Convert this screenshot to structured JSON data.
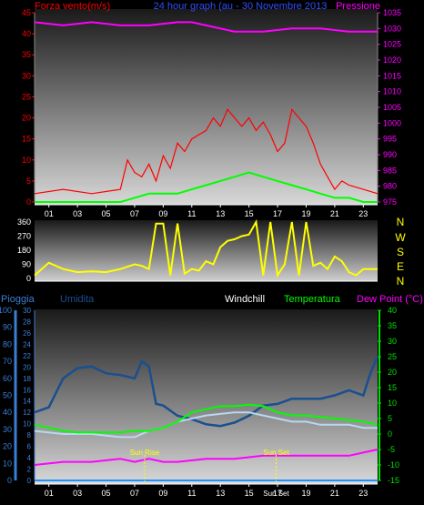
{
  "header": {
    "left_title": "Forza vento",
    "left_unit": "(m/s)",
    "center_title": "24 hour graph (au - 30 Novembre 2013",
    "right_title": "Pressione"
  },
  "compass": [
    "N",
    "W",
    "S",
    "E",
    "N"
  ],
  "bottom_header": {
    "rain": "Pioggia",
    "humidity": "Umidita",
    "windchill": "Windchill",
    "temperature": "Temperatura",
    "dewpoint": "Dew Point (°C)"
  },
  "sun_labels": {
    "rise": "Sun Rise",
    "set": "Sun Set",
    "set_axis": "Sun Set"
  },
  "colors": {
    "wind": "#ff0000",
    "gust": "#00ff00",
    "pressure": "#ff00ff",
    "direction": "#ffff00",
    "humidity": "#1a4f90",
    "temperature": "#00ff00",
    "windchill": "#b8d8f0",
    "dewpoint": "#ff00ff",
    "rain": "#1e90ff",
    "axis_blue": "#3a7fd5",
    "axis_green": "#00e000"
  },
  "chart_data": [
    {
      "type": "line",
      "panel": "wind_pressure",
      "xlabel": "",
      "x_ticks": [
        "01",
        "03",
        "05",
        "07",
        "09",
        "11",
        "13",
        "15",
        "17",
        "19",
        "21",
        "23"
      ],
      "x_hours": [
        1,
        3,
        5,
        7,
        9,
        11,
        13,
        15,
        17,
        19,
        21,
        23
      ],
      "left_axis": {
        "label": "Forza vento (m/s)",
        "ticks": [
          0,
          5,
          10,
          15,
          20,
          25,
          30,
          35,
          40,
          45
        ],
        "range": [
          0,
          45
        ]
      },
      "right_axis": {
        "label": "Pressione",
        "ticks": [
          975,
          980,
          985,
          990,
          995,
          1000,
          1005,
          1010,
          1015,
          1020,
          1025,
          1030,
          1035
        ],
        "range": [
          975,
          1035
        ]
      },
      "series": [
        {
          "name": "Forza vento",
          "axis": "left",
          "x": [
            0,
            2,
            4,
            6,
            6.5,
            7,
            7.5,
            8,
            8.5,
            9,
            9.5,
            10,
            10.5,
            11,
            11.5,
            12,
            12.5,
            13,
            13.5,
            14,
            14.5,
            15,
            15.5,
            16,
            16.5,
            17,
            17.5,
            18,
            18.5,
            19,
            19.5,
            20,
            20.5,
            21,
            21.5,
            22,
            23,
            24
          ],
          "values": [
            2,
            3,
            2,
            3,
            10,
            7,
            6,
            9,
            5,
            11,
            8,
            14,
            12,
            15,
            16,
            17,
            20,
            18,
            22,
            20,
            18,
            20,
            17,
            19,
            16,
            12,
            14,
            22,
            20,
            18,
            14,
            9,
            6,
            3,
            5,
            4,
            3,
            2
          ]
        },
        {
          "axis": "left",
          "x": [
            0,
            6,
            7,
            8,
            9,
            10,
            11,
            12,
            13,
            14,
            15,
            16,
            17,
            18,
            19,
            20,
            21,
            22,
            23,
            24
          ],
          "values": [
            0,
            0,
            1,
            2,
            2,
            2,
            3,
            4,
            5,
            6,
            7,
            6,
            5,
            4,
            3,
            2,
            1,
            1,
            0,
            0
          ]
        },
        {
          "name": "Pressione",
          "axis": "right",
          "x": [
            0,
            2,
            4,
            6,
            8,
            10,
            11,
            12,
            14,
            16,
            18,
            20,
            22,
            24
          ],
          "values": [
            1032,
            1031,
            1032,
            1031,
            1031,
            1032,
            1032,
            1031,
            1029,
            1029,
            1030,
            1030,
            1029,
            1029
          ]
        }
      ]
    },
    {
      "type": "line",
      "panel": "wind_direction",
      "left_axis": {
        "ticks": [
          0,
          90,
          180,
          270,
          360
        ],
        "range": [
          0,
          360
        ]
      },
      "series": [
        {
          "x": [
            0,
            1,
            2,
            3,
            4,
            5,
            6,
            7,
            7.5,
            8,
            8.5,
            9,
            9.5,
            10,
            10.5,
            11,
            11.5,
            12,
            12.5,
            13,
            13.5,
            14,
            14.5,
            15,
            15.5,
            16,
            16.5,
            17,
            17.5,
            18,
            18.5,
            19,
            19.5,
            20,
            20.5,
            21,
            21.5,
            22,
            22.5,
            23,
            24
          ],
          "values": [
            20,
            100,
            60,
            40,
            45,
            40,
            60,
            90,
            80,
            60,
            350,
            350,
            20,
            350,
            30,
            60,
            50,
            110,
            90,
            200,
            240,
            250,
            270,
            280,
            360,
            20,
            360,
            20,
            90,
            360,
            20,
            360,
            80,
            100,
            60,
            140,
            110,
            40,
            20,
            60,
            60
          ]
        }
      ]
    },
    {
      "type": "line",
      "panel": "temp_humidity_rain",
      "left_axis": {
        "label": "Pioggia",
        "ticks": [
          0,
          10,
          20,
          30,
          40,
          50,
          60,
          70,
          80,
          90,
          100
        ],
        "range": [
          0,
          100
        ]
      },
      "left_axis_2": {
        "label": "Umidita",
        "ticks": [
          0,
          2,
          4,
          6,
          8,
          10,
          12,
          14,
          16,
          18,
          20,
          22,
          24,
          26,
          28,
          30
        ],
        "range": [
          0,
          30
        ]
      },
      "right_axis": {
        "label": "Temperatura",
        "ticks": [
          -15,
          -10,
          -5,
          0,
          5,
          10,
          15,
          20,
          25,
          30,
          35,
          40
        ],
        "range": [
          -15,
          40
        ]
      },
      "series": [
        {
          "name": "Umidita",
          "axis": "left",
          "x": [
            0,
            1,
            2,
            3,
            4,
            5,
            6,
            7,
            7.5,
            8,
            8.5,
            9,
            10,
            11,
            12,
            13,
            14,
            15,
            16,
            17,
            18,
            19,
            20,
            21,
            22,
            23,
            23.5,
            24
          ],
          "values": [
            40,
            43,
            60,
            66,
            67,
            63,
            62,
            60,
            70,
            67,
            45,
            44,
            38,
            36,
            33,
            32,
            34,
            38,
            44,
            45,
            48,
            48,
            48,
            50,
            53,
            50,
            63,
            73
          ]
        },
        {
          "name": "Temperatura",
          "axis": "right",
          "x": [
            0,
            1,
            2,
            3,
            4,
            5,
            6,
            7,
            8,
            9,
            10,
            11,
            12,
            13,
            14,
            15,
            16,
            17,
            18,
            19,
            20,
            21,
            22,
            23,
            24
          ],
          "values": [
            3,
            2,
            1,
            0.5,
            0.5,
            0.5,
            0.5,
            1,
            1,
            2,
            4,
            7,
            8,
            9,
            9,
            9.5,
            9,
            7,
            6,
            6,
            5.5,
            5,
            4.5,
            4,
            3
          ]
        },
        {
          "name": "Windchill",
          "axis": "right",
          "x": [
            0,
            2,
            4,
            6,
            7,
            8,
            9,
            10,
            11,
            12,
            13,
            14,
            15,
            16,
            17,
            18,
            19,
            20,
            21,
            22,
            23,
            24
          ],
          "values": [
            1,
            0,
            0,
            -1,
            -1,
            1,
            2,
            4,
            5,
            6,
            6.5,
            7,
            7,
            6,
            5,
            4,
            4,
            3,
            3,
            3,
            2,
            2
          ]
        },
        {
          "name": "Dew Point",
          "axis": "right",
          "x": [
            0,
            2,
            4,
            6,
            7,
            8,
            9,
            10,
            12,
            14,
            16,
            18,
            20,
            22,
            23,
            24
          ],
          "values": [
            -10,
            -9,
            -9,
            -8,
            -9,
            -8,
            -9,
            -9,
            -8,
            -8,
            -7,
            -7,
            -7,
            -7,
            -6,
            -5
          ]
        },
        {
          "name": "Pioggia",
          "axis": "left",
          "x": [
            0,
            24
          ],
          "values": [
            0,
            0
          ]
        }
      ],
      "markers": [
        {
          "hour": 7.7,
          "label": "Sun Rise"
        },
        {
          "hour": 16.9,
          "label": "Sun Set"
        }
      ]
    }
  ]
}
